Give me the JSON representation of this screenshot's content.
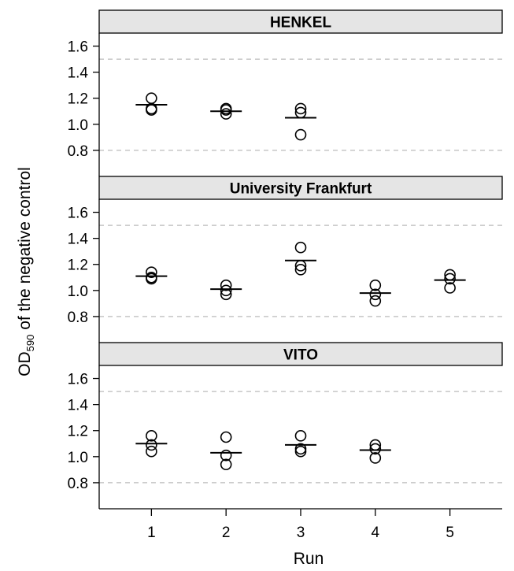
{
  "chart_data": {
    "type": "scatter",
    "xlabel": "Run",
    "ylabel": "OD",
    "ylabel_sub": "590",
    "ylabel_rest": " of the negative control",
    "ylim": [
      0.6,
      1.7
    ],
    "xlim": [
      0.3,
      5.7
    ],
    "x_ticks": [
      1,
      2,
      3,
      4,
      5
    ],
    "x_tick_labels": [
      "1",
      "2",
      "3",
      "4",
      "5"
    ],
    "y_ticks": [
      0.8,
      1.0,
      1.2,
      1.4,
      1.6
    ],
    "y_tick_labels": [
      "0.8",
      "1.0",
      "1.2",
      "1.4",
      "1.6"
    ],
    "reference_lines": [
      0.8,
      1.5
    ],
    "reference_line_style": "dashed grey",
    "strip_color": "#e5e5e5",
    "panels": [
      {
        "name": "HENKEL",
        "points": [
          {
            "x": 1,
            "y": 1.2
          },
          {
            "x": 1,
            "y": 1.12
          },
          {
            "x": 1,
            "y": 1.11
          },
          {
            "x": 2,
            "y": 1.12
          },
          {
            "x": 2,
            "y": 1.11
          },
          {
            "x": 2,
            "y": 1.08
          },
          {
            "x": 3,
            "y": 1.12
          },
          {
            "x": 3,
            "y": 1.09
          },
          {
            "x": 3,
            "y": 0.92
          }
        ],
        "means": [
          {
            "x": 1,
            "y": 1.15
          },
          {
            "x": 2,
            "y": 1.1
          },
          {
            "x": 3,
            "y": 1.05
          }
        ]
      },
      {
        "name": "University Frankfurt",
        "points": [
          {
            "x": 1,
            "y": 1.14
          },
          {
            "x": 1,
            "y": 1.1
          },
          {
            "x": 1,
            "y": 1.09
          },
          {
            "x": 2,
            "y": 1.04
          },
          {
            "x": 2,
            "y": 1.0
          },
          {
            "x": 2,
            "y": 0.97
          },
          {
            "x": 3,
            "y": 1.33
          },
          {
            "x": 3,
            "y": 1.19
          },
          {
            "x": 3,
            "y": 1.16
          },
          {
            "x": 4,
            "y": 1.04
          },
          {
            "x": 4,
            "y": 0.97
          },
          {
            "x": 4,
            "y": 0.92
          },
          {
            "x": 5,
            "y": 1.12
          },
          {
            "x": 5,
            "y": 1.09
          },
          {
            "x": 5,
            "y": 1.02
          }
        ],
        "means": [
          {
            "x": 1,
            "y": 1.11
          },
          {
            "x": 2,
            "y": 1.01
          },
          {
            "x": 3,
            "y": 1.23
          },
          {
            "x": 4,
            "y": 0.98
          },
          {
            "x": 5,
            "y": 1.08
          }
        ]
      },
      {
        "name": "VITO",
        "points": [
          {
            "x": 1,
            "y": 1.16
          },
          {
            "x": 1,
            "y": 1.09
          },
          {
            "x": 1,
            "y": 1.04
          },
          {
            "x": 2,
            "y": 1.15
          },
          {
            "x": 2,
            "y": 1.01
          },
          {
            "x": 2,
            "y": 0.94
          },
          {
            "x": 3,
            "y": 1.16
          },
          {
            "x": 3,
            "y": 1.06
          },
          {
            "x": 3,
            "y": 1.04
          },
          {
            "x": 4,
            "y": 1.09
          },
          {
            "x": 4,
            "y": 1.06
          },
          {
            "x": 4,
            "y": 0.99
          }
        ],
        "means": [
          {
            "x": 1,
            "y": 1.1
          },
          {
            "x": 2,
            "y": 1.03
          },
          {
            "x": 3,
            "y": 1.09
          },
          {
            "x": 4,
            "y": 1.05
          }
        ]
      }
    ]
  }
}
